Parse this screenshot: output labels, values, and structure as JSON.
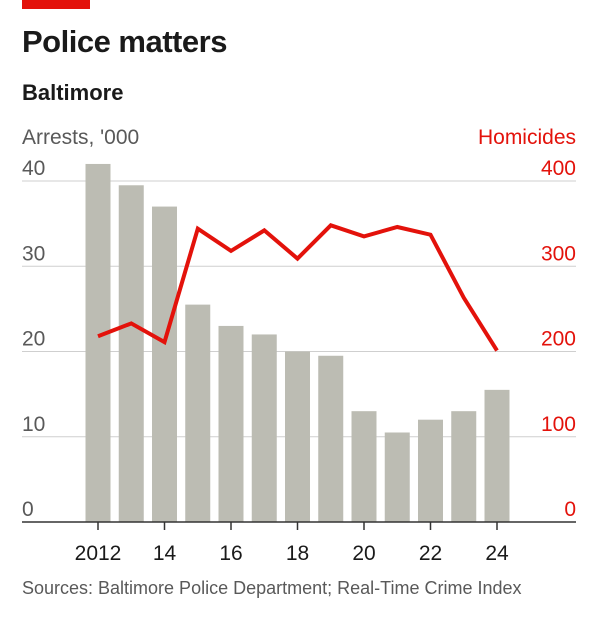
{
  "header": {
    "title": "Police matters",
    "subtitle": "Baltimore"
  },
  "footer": {
    "source": "Sources: Baltimore Police Department; Real-Time Crime Index"
  },
  "colors": {
    "accent": "#e3120b",
    "bars": "#bcbcb3",
    "line": "#e3120b",
    "grid": "#cfcfcf",
    "axis": "#333333"
  },
  "chart_data": {
    "type": "bar",
    "combo": "bar+line",
    "x": [
      2012,
      2013,
      2014,
      2015,
      2016,
      2017,
      2018,
      2019,
      2020,
      2021,
      2022,
      2023,
      2024
    ],
    "x_tick_values": [
      2012,
      2014,
      2016,
      2018,
      2020,
      2022,
      2024
    ],
    "x_tick_labels": [
      "2012",
      "14",
      "16",
      "18",
      "20",
      "22",
      "24"
    ],
    "series": [
      {
        "name": "Arrests, '000",
        "type": "bar",
        "axis": "left",
        "values": [
          42.0,
          39.5,
          37.0,
          25.5,
          23.0,
          22.0,
          20.0,
          19.5,
          13.0,
          10.5,
          12.0,
          13.0,
          15.5
        ]
      },
      {
        "name": "Homicides",
        "type": "line",
        "axis": "right",
        "values": [
          218,
          233,
          211,
          344,
          318,
          342,
          309,
          348,
          335,
          346,
          337,
          263,
          201
        ]
      }
    ],
    "left_axis": {
      "label": "Arrests, '000",
      "ylim": [
        0,
        40
      ],
      "ticks": [
        0,
        10,
        20,
        30,
        40
      ]
    },
    "right_axis": {
      "label": "Homicides",
      "ylim": [
        0,
        400
      ],
      "ticks": [
        0,
        100,
        200,
        300,
        400
      ]
    },
    "grid": true
  }
}
